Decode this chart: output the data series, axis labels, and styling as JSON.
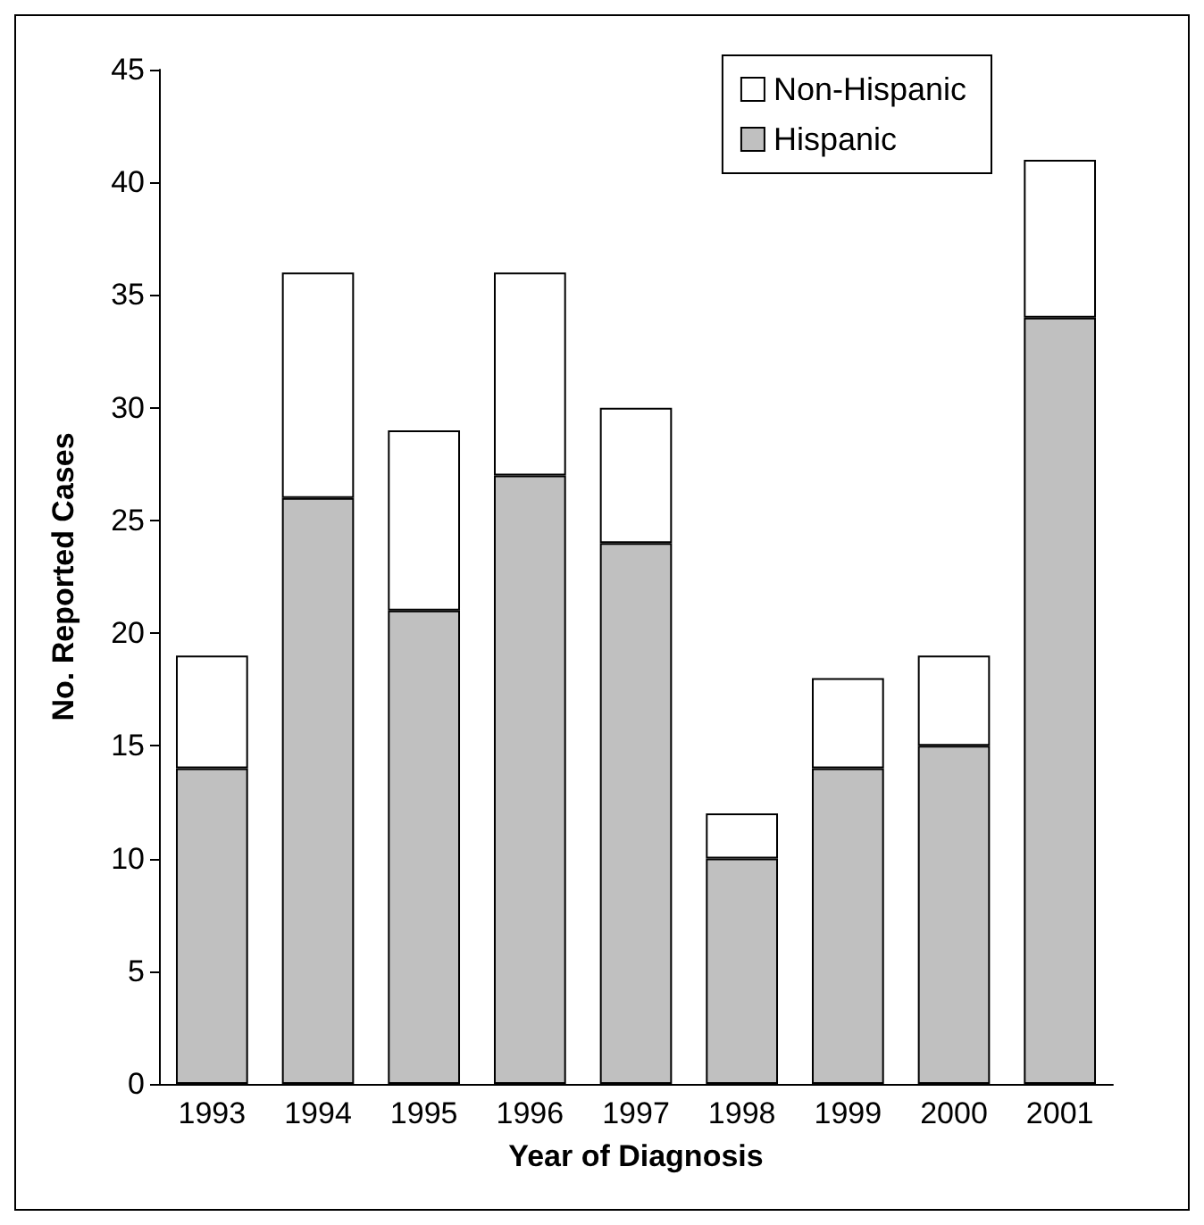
{
  "chart_data": {
    "type": "bar",
    "xlabel": "Year of Diagnosis",
    "ylabel": "No. Reported Cases",
    "categories": [
      "1993",
      "1994",
      "1995",
      "1996",
      "1997",
      "1998",
      "1999",
      "2000",
      "2001"
    ],
    "stacked": true,
    "series": [
      {
        "name": "Hispanic",
        "color": "#c0c0c0",
        "values": [
          14,
          26,
          21,
          27,
          24,
          10,
          14,
          15,
          34
        ]
      },
      {
        "name": "Non-Hispanic",
        "color": "#ffffff",
        "values": [
          5,
          10,
          8,
          9,
          6,
          2,
          4,
          4,
          7
        ]
      }
    ],
    "ylim": [
      0,
      45
    ],
    "yticks": [
      0,
      5,
      10,
      15,
      20,
      25,
      30,
      35,
      40,
      45
    ],
    "grid": false,
    "legend": "top right"
  }
}
